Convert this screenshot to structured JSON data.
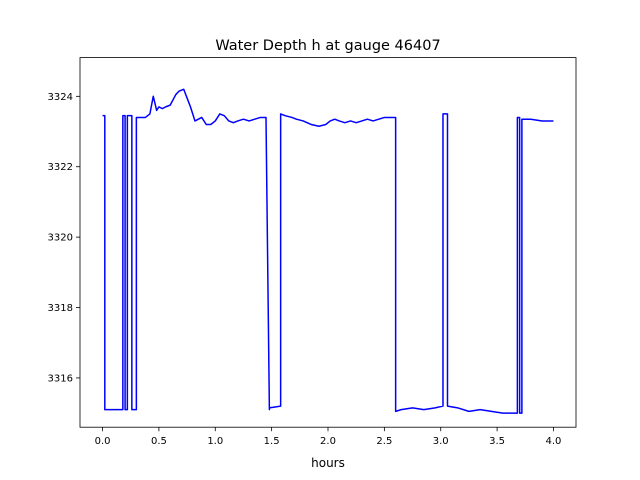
{
  "chart_data": {
    "type": "line",
    "title": "Water Depth h at gauge 46407",
    "xlabel": "hours",
    "ylabel": "",
    "xlim": [
      -0.2,
      4.2
    ],
    "ylim": [
      3314.6,
      3325.1
    ],
    "xticks": [
      0.0,
      0.5,
      1.0,
      1.5,
      2.0,
      2.5,
      3.0,
      3.5,
      4.0
    ],
    "xtick_labels": [
      "0.0",
      "0.5",
      "1.0",
      "1.5",
      "2.0",
      "2.5",
      "3.0",
      "3.5",
      "4.0"
    ],
    "yticks": [
      3316,
      3318,
      3320,
      3322,
      3324
    ],
    "ytick_labels": [
      "3316",
      "3318",
      "3320",
      "3322",
      "3324"
    ],
    "grid": false,
    "series": [
      {
        "color": "#0000ff",
        "x": [
          0.0,
          0.02,
          0.02,
          0.18,
          0.18,
          0.2,
          0.2,
          0.22,
          0.22,
          0.26,
          0.26,
          0.3,
          0.3,
          0.33,
          0.33,
          0.38,
          0.42,
          0.45,
          0.48,
          0.5,
          0.53,
          0.56,
          0.6,
          0.65,
          0.68,
          0.72,
          0.75,
          0.78,
          0.82,
          0.85,
          0.88,
          0.92,
          0.96,
          1.0,
          1.04,
          1.08,
          1.12,
          1.16,
          1.2,
          1.25,
          1.3,
          1.35,
          1.4,
          1.45,
          1.48,
          1.48,
          1.58,
          1.58,
          1.62,
          1.68,
          1.72,
          1.78,
          1.85,
          1.92,
          1.98,
          2.02,
          2.06,
          2.1,
          2.15,
          2.2,
          2.25,
          2.3,
          2.35,
          2.4,
          2.45,
          2.5,
          2.55,
          2.6,
          2.6,
          2.65,
          2.75,
          2.85,
          2.95,
          3.02,
          3.02,
          3.06,
          3.06,
          3.15,
          3.25,
          3.35,
          3.45,
          3.55,
          3.65,
          3.68,
          3.68,
          3.7,
          3.7,
          3.72,
          3.72,
          3.8,
          3.9,
          4.0
        ],
        "y": [
          3323.45,
          3323.45,
          3315.1,
          3315.1,
          3323.45,
          3323.45,
          3315.1,
          3315.1,
          3323.45,
          3323.45,
          3315.1,
          3315.1,
          3323.4,
          3323.4,
          3323.4,
          3323.4,
          3323.5,
          3324.0,
          3323.6,
          3323.7,
          3323.65,
          3323.7,
          3323.75,
          3324.05,
          3324.15,
          3324.2,
          3323.95,
          3323.7,
          3323.3,
          3323.35,
          3323.4,
          3323.2,
          3323.2,
          3323.3,
          3323.5,
          3323.45,
          3323.3,
          3323.25,
          3323.3,
          3323.35,
          3323.3,
          3323.35,
          3323.4,
          3323.4,
          3315.1,
          3315.15,
          3315.2,
          3323.5,
          3323.45,
          3323.4,
          3323.35,
          3323.3,
          3323.2,
          3323.15,
          3323.2,
          3323.3,
          3323.35,
          3323.3,
          3323.25,
          3323.3,
          3323.25,
          3323.3,
          3323.35,
          3323.3,
          3323.35,
          3323.4,
          3323.4,
          3323.4,
          3315.05,
          3315.1,
          3315.15,
          3315.1,
          3315.15,
          3315.2,
          3323.5,
          3323.5,
          3315.2,
          3315.15,
          3315.05,
          3315.1,
          3315.05,
          3315.0,
          3315.0,
          3315.0,
          3323.4,
          3323.4,
          3315.0,
          3315.0,
          3323.35,
          3323.35,
          3323.3,
          3323.3
        ]
      }
    ]
  }
}
